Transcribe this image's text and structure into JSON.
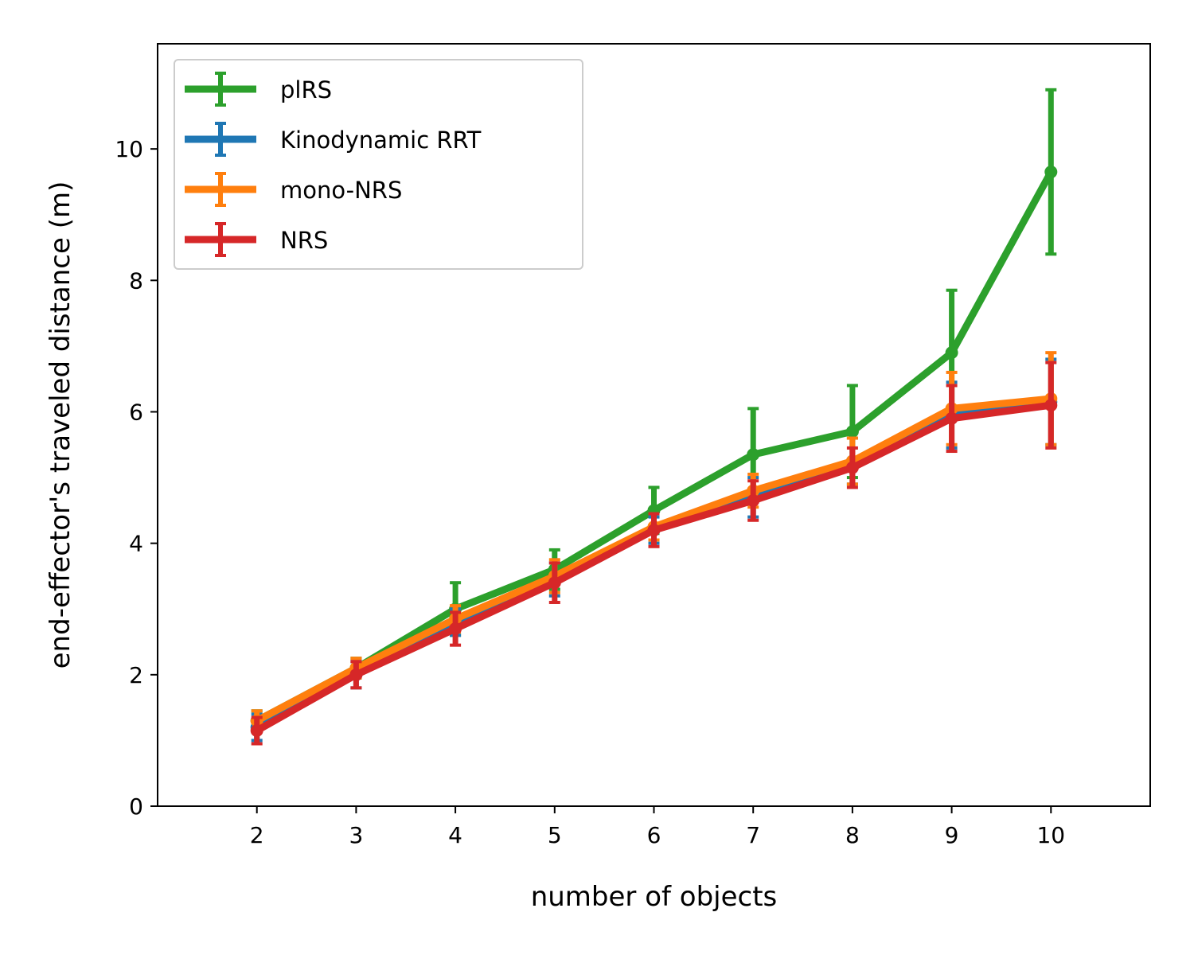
{
  "chart_data": {
    "type": "line",
    "title": "",
    "xlabel": "number of objects",
    "ylabel": "end-effector's traveled distance (m)",
    "x": [
      2,
      3,
      4,
      5,
      6,
      7,
      8,
      9,
      10
    ],
    "xlim": [
      1,
      11
    ],
    "ylim": [
      0,
      11.6
    ],
    "xticks": [
      "2",
      "3",
      "4",
      "5",
      "6",
      "7",
      "8",
      "9",
      "10"
    ],
    "yticks": [
      "0",
      "2",
      "4",
      "6",
      "8",
      "10"
    ],
    "grid": false,
    "legend_position": "upper-left",
    "error_bars": true,
    "series": [
      {
        "name": "plRS",
        "color": "#2ca02c",
        "values": [
          1.3,
          2.1,
          3.0,
          3.6,
          4.5,
          5.35,
          5.7,
          6.9,
          9.65
        ],
        "err": [
          0.15,
          0.15,
          0.4,
          0.3,
          0.35,
          0.7,
          0.7,
          0.95,
          1.25
        ]
      },
      {
        "name": "Kinodynamic RRT",
        "color": "#1f77b4",
        "values": [
          1.2,
          2.0,
          2.8,
          3.45,
          4.2,
          4.7,
          5.25,
          5.95,
          6.15
        ],
        "err": [
          0.2,
          0.2,
          0.2,
          0.25,
          0.2,
          0.3,
          0.35,
          0.5,
          0.65
        ]
      },
      {
        "name": "mono-NRS",
        "color": "#ff7f0e",
        "values": [
          1.3,
          2.1,
          2.85,
          3.5,
          4.25,
          4.8,
          5.25,
          6.05,
          6.2
        ],
        "err": [
          0.15,
          0.15,
          0.2,
          0.25,
          0.2,
          0.25,
          0.35,
          0.55,
          0.7
        ]
      },
      {
        "name": "NRS",
        "color": "#d62728",
        "values": [
          1.15,
          2.0,
          2.7,
          3.4,
          4.2,
          4.65,
          5.15,
          5.9,
          6.1
        ],
        "err": [
          0.2,
          0.2,
          0.25,
          0.3,
          0.25,
          0.3,
          0.3,
          0.5,
          0.65
        ]
      }
    ]
  }
}
